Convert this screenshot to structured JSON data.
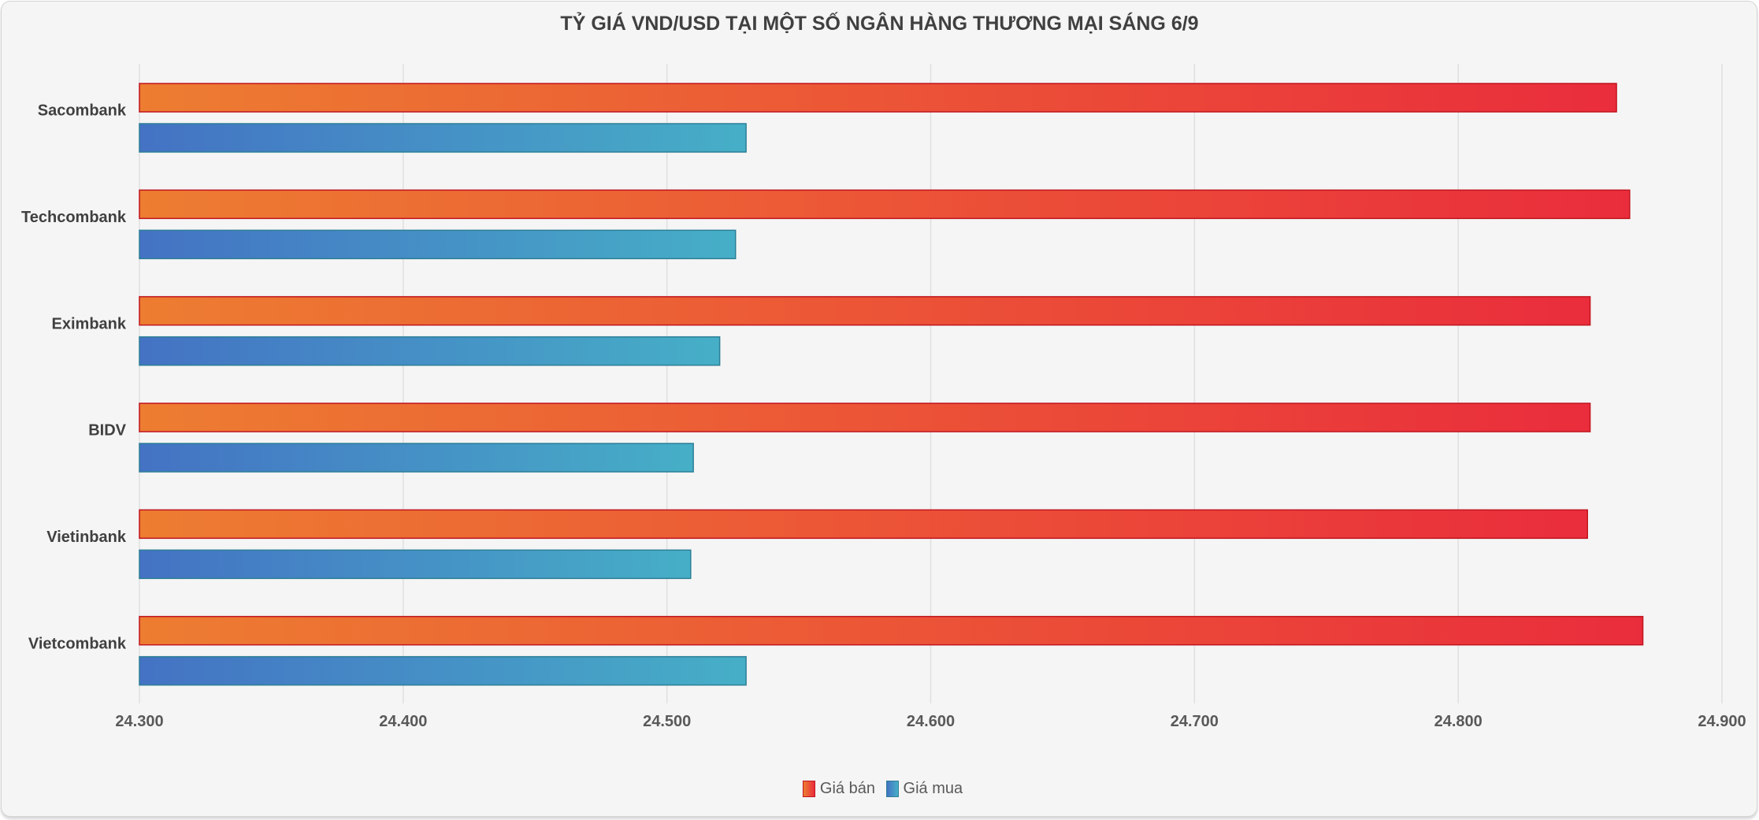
{
  "chart_data": {
    "type": "bar",
    "orientation": "horizontal",
    "title": "TỶ GIÁ VND/USD TẠI MỘT SỐ NGÂN HÀNG THƯƠNG MẠI SÁNG 6/9",
    "categories": [
      "Sacombank",
      "Techcombank",
      "Eximbank",
      "BIDV",
      "Vietinbank",
      "Vietcombank"
    ],
    "series": [
      {
        "name": "Giá bán",
        "values": [
          24860,
          24865,
          24850,
          24850,
          24849,
          24870
        ],
        "color_from": "#ed7d31",
        "color_to": "#ea2d3c",
        "border": "#c0151f"
      },
      {
        "name": "Giá mua",
        "values": [
          24530,
          24526,
          24520,
          24510,
          24509,
          24530
        ],
        "color_from": "#4472c4",
        "color_to": "#46afc7",
        "border": "#2d7f96"
      }
    ],
    "xlim": [
      24300,
      24900
    ],
    "xticks": [
      24300,
      24400,
      24500,
      24600,
      24700,
      24800,
      24900
    ],
    "xtick_labels": [
      "24.300",
      "24.400",
      "24.500",
      "24.600",
      "24.700",
      "24.800",
      "24.900"
    ],
    "grid": true,
    "legend": "bottom"
  }
}
